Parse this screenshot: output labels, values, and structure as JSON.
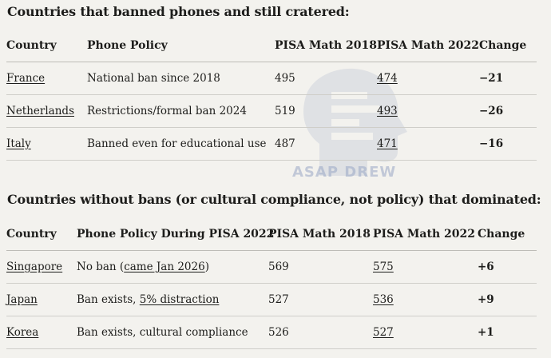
{
  "section1": {
    "title": "Countries that banned phones and still cratered:",
    "headers": [
      "Country",
      "Phone Policy",
      "PISA Math 2018",
      "PISA Math 2022",
      "Change"
    ],
    "rows": [
      {
        "country": "France",
        "policy": "National ban since 2018",
        "m2018": "495",
        "m2022": "474",
        "change": "−21"
      },
      {
        "country": "Netherlands",
        "policy": "Restrictions/formal ban 2024",
        "m2018": "519",
        "m2022": "493",
        "change": "−26"
      },
      {
        "country": "Italy",
        "policy": "Banned even for educational use",
        "m2018": "487",
        "m2022": "471",
        "change": "−16"
      }
    ]
  },
  "section2": {
    "title": "Countries without bans (or cultural compliance, not policy) that dominated:",
    "headers": [
      "Country",
      "Phone Policy During PISA 2022",
      "PISA Math 2018",
      "PISA Math 2022",
      "Change"
    ],
    "rows": [
      {
        "country": "Singapore",
        "policy_prefix": "No ban (",
        "policy_link": "came Jan 2026",
        "policy_suffix": ")",
        "m2018": "569",
        "m2022": "575",
        "change": "+6"
      },
      {
        "country": "Japan",
        "policy_prefix": "Ban exists, ",
        "policy_link": "5% distraction",
        "policy_suffix": "",
        "m2018": "527",
        "m2022": "536",
        "change": "+9"
      },
      {
        "country": "Korea",
        "policy_prefix": "Ban exists, cultural compliance",
        "policy_link": "",
        "policy_suffix": "",
        "m2018": "526",
        "m2022": "527",
        "change": "+1"
      }
    ]
  },
  "watermark": {
    "text": "ASAP DREW",
    "color": "#9aa7c6"
  }
}
